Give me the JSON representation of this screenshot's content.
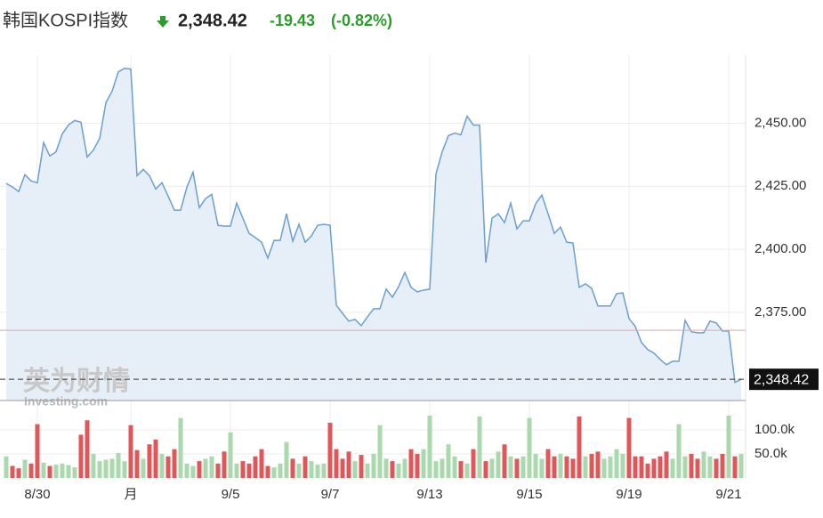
{
  "chart_data": {
    "type": "line",
    "title": "韩国KOSPI指数",
    "last_label": "2,348.42",
    "change": "-19.43",
    "change_pct": "(-0.82%)",
    "watermark": "英为财情",
    "watermark_sub": "Investing.com",
    "line_color": "#6a9fd0",
    "area_color": "#e6eef7",
    "reference_color": "#e8a4a4",
    "previous_close": 2367.85,
    "up_color": "#a9d9ac",
    "down_color": "#e0575a",
    "grid": true,
    "ylim": [
      2340,
      2477
    ],
    "yticks": [
      {
        "value": 2375,
        "label": "2,375.00"
      },
      {
        "value": 2400,
        "label": "2,400.00"
      },
      {
        "value": 2425,
        "label": "2,425.00"
      },
      {
        "value": 2450,
        "label": "2,450.00"
      }
    ],
    "vlim": [
      0,
      152000
    ],
    "vticks": [
      {
        "value": 50000,
        "label": "50.0k"
      },
      {
        "value": 100000,
        "label": "100.0k"
      }
    ],
    "categories": [
      null,
      null,
      null,
      null,
      null,
      "8/30",
      null,
      null,
      null,
      null,
      null,
      null,
      null,
      null,
      null,
      null,
      null,
      null,
      null,
      null,
      "月",
      null,
      null,
      null,
      null,
      null,
      null,
      null,
      null,
      null,
      null,
      null,
      null,
      null,
      null,
      null,
      "9/5",
      null,
      null,
      null,
      null,
      null,
      null,
      null,
      null,
      null,
      null,
      null,
      null,
      null,
      null,
      null,
      "9/7",
      null,
      null,
      null,
      null,
      null,
      null,
      null,
      null,
      null,
      null,
      null,
      null,
      null,
      null,
      null,
      "9/13",
      null,
      null,
      null,
      null,
      null,
      null,
      null,
      null,
      null,
      null,
      null,
      null,
      null,
      null,
      null,
      "9/15",
      null,
      null,
      null,
      null,
      null,
      null,
      null,
      null,
      null,
      null,
      null,
      null,
      null,
      null,
      null,
      "9/19",
      null,
      null,
      null,
      null,
      null,
      null,
      null,
      null,
      null,
      null,
      null,
      null,
      null,
      null,
      null,
      "9/21",
      null,
      null
    ],
    "values": [
      2426.1,
      2424.7,
      2422.9,
      2429.6,
      2427.1,
      2426.4,
      2442.3,
      2437.0,
      2438.7,
      2445.8,
      2449.3,
      2451.1,
      2450.4,
      2436.6,
      2439.4,
      2444.0,
      2458.1,
      2462.7,
      2470.4,
      2471.8,
      2471.5,
      2429.2,
      2431.7,
      2429.2,
      2423.9,
      2426.4,
      2421.1,
      2415.5,
      2415.5,
      2424.6,
      2430.6,
      2416.5,
      2420.1,
      2421.8,
      2409.5,
      2409.2,
      2409.2,
      2418.3,
      2412.3,
      2406.3,
      2404.6,
      2402.8,
      2396.5,
      2403.5,
      2403.5,
      2414.1,
      2403.2,
      2409.9,
      2402.8,
      2405.3,
      2409.5,
      2409.9,
      2409.5,
      2377.8,
      2374.6,
      2371.5,
      2372.2,
      2369.7,
      2373.2,
      2376.4,
      2376.4,
      2384.2,
      2381.0,
      2385.2,
      2390.8,
      2384.9,
      2383.1,
      2383.8,
      2384.2,
      2429.9,
      2438.7,
      2445.1,
      2446.1,
      2445.4,
      2452.8,
      2449.3,
      2449.3,
      2394.7,
      2412.3,
      2414.1,
      2410.6,
      2418.3,
      2408.1,
      2411.3,
      2411.3,
      2418.0,
      2421.5,
      2414.1,
      2406.3,
      2408.8,
      2402.8,
      2402.5,
      2384.9,
      2386.3,
      2384.5,
      2377.5,
      2377.5,
      2377.5,
      2382.4,
      2382.7,
      2372.5,
      2369.4,
      2363.0,
      2360.2,
      2358.8,
      2356.3,
      2354.2,
      2355.6,
      2355.6,
      2371.8,
      2367.3,
      2366.9,
      2366.9,
      2371.5,
      2370.8,
      2367.6,
      2367.6,
      2347.2,
      2348.42
    ],
    "volumes": [
      45000,
      25000,
      20000,
      38000,
      30000,
      112000,
      32000,
      25000,
      28000,
      30000,
      27000,
      22000,
      90000,
      120000,
      50000,
      35000,
      38000,
      40000,
      52000,
      35000,
      110000,
      58000,
      40000,
      70000,
      80000,
      50000,
      45000,
      60000,
      125000,
      30000,
      25000,
      35000,
      40000,
      45000,
      30000,
      55000,
      95000,
      30000,
      35000,
      30000,
      45000,
      60000,
      25000,
      22000,
      30000,
      75000,
      40000,
      30000,
      45000,
      35000,
      28000,
      30000,
      115000,
      60000,
      40000,
      55000,
      35000,
      48000,
      30000,
      50000,
      110000,
      40000,
      35000,
      30000,
      40000,
      60000,
      50000,
      60000,
      130000,
      35000,
      40000,
      70000,
      45000,
      35000,
      30000,
      60000,
      128000,
      35000,
      40000,
      55000,
      70000,
      45000,
      40000,
      45000,
      125000,
      50000,
      40000,
      60000,
      45000,
      50000,
      45000,
      40000,
      128000,
      45000,
      50000,
      55000,
      40000,
      45000,
      60000,
      50000,
      125000,
      45000,
      45000,
      30000,
      40000,
      45000,
      55000,
      40000,
      112000,
      45000,
      50000,
      40000,
      55000,
      45000,
      40000,
      50000,
      130000,
      45000,
      50000
    ]
  }
}
